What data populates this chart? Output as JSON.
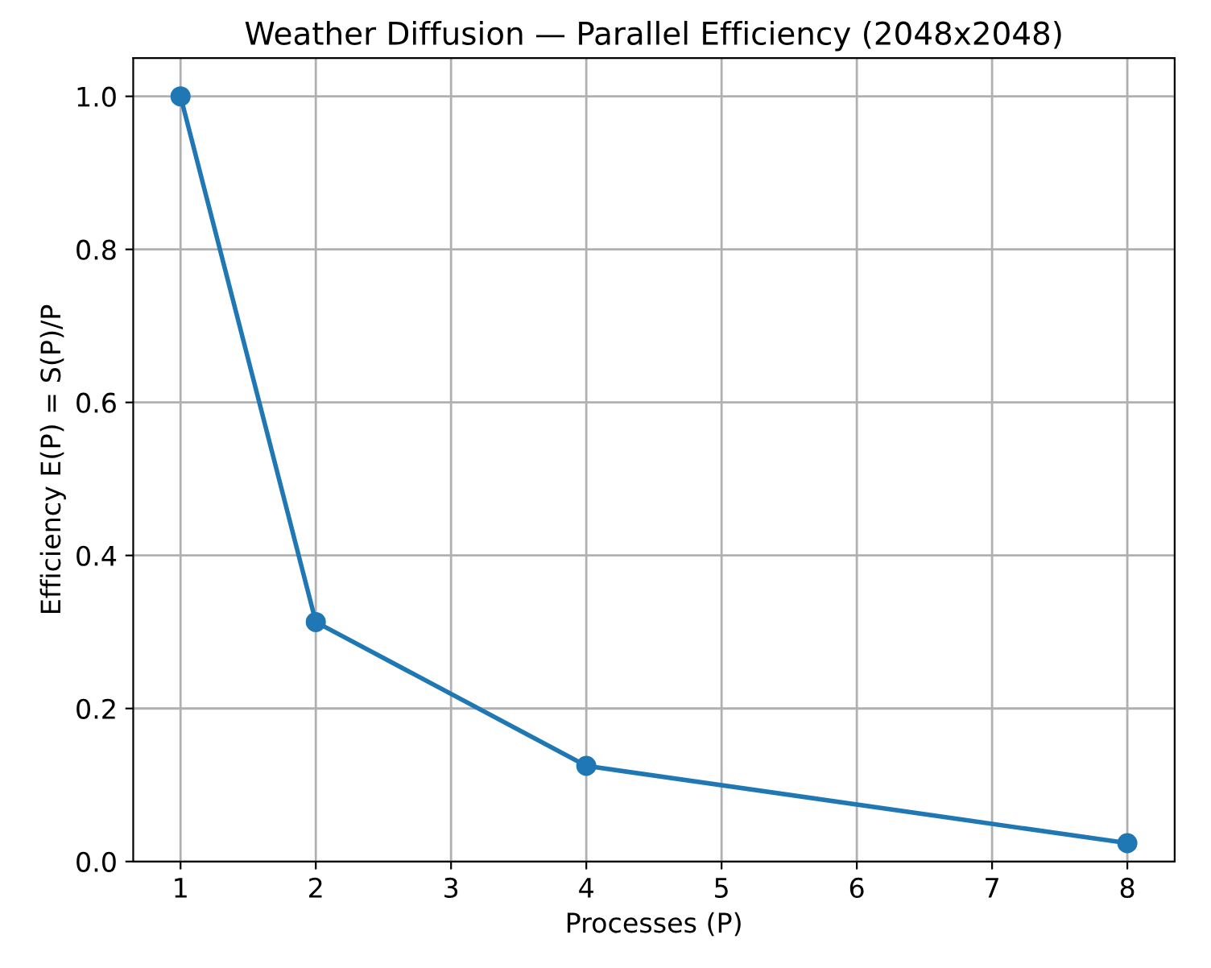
{
  "chart_data": {
    "type": "line",
    "title": "Weather Diffusion — Parallel Efficiency (2048x2048)",
    "xlabel": "Processes (P)",
    "ylabel": "Efficiency E(P) = S(P)/P",
    "x": [
      1,
      2,
      4,
      8
    ],
    "series": [
      {
        "color": "#1f77b4",
        "values": [
          1.0,
          0.313,
          0.125,
          0.024
        ]
      }
    ],
    "xlim": [
      0.65,
      8.35
    ],
    "xticks": [
      1,
      2,
      3,
      4,
      5,
      6,
      7,
      8
    ],
    "ylim": [
      0,
      1.05
    ],
    "yticks": [
      {
        "value": 0,
        "label": "0.0"
      },
      {
        "value": 0.2,
        "label": "0.2"
      },
      {
        "value": 0.4,
        "label": "0.4"
      },
      {
        "value": 0.6,
        "label": "0.6"
      },
      {
        "value": 0.8,
        "label": "0.8"
      },
      {
        "value": 1.0,
        "label": "1.0"
      }
    ],
    "grid": true,
    "marker": "circle",
    "line_style": "solid"
  }
}
